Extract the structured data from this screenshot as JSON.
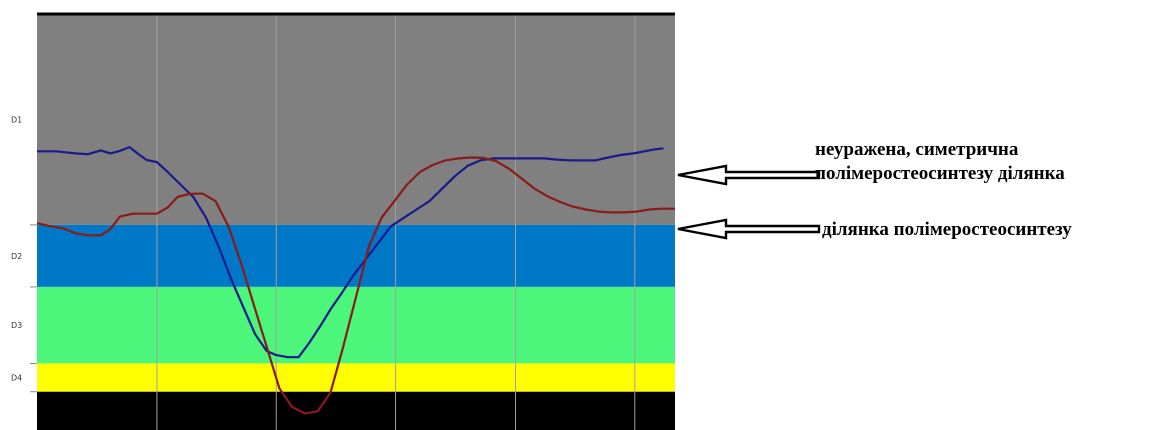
{
  "colors": {
    "band_D1": "#808080",
    "band_D2": "#0078c8",
    "band_D3": "#4cf67a",
    "band_D4": "#ffff00",
    "band_bottom": "#000000",
    "grid": "#a0a0a0",
    "series_intact": "#1a1a8c",
    "series_osteo": "#8b1a1a"
  },
  "annotations": {
    "intact_line1": "неуражена, симетрична",
    "intact_line2": "полімеростеосинтезу ділянка",
    "osteo": "ділянка полімеростеосинтезу"
  },
  "chart_data": {
    "type": "line",
    "bands": [
      {
        "label": "D1",
        "top": 1.0,
        "bottom": 0.493
      },
      {
        "label": "D2",
        "top": 0.493,
        "bottom": 0.344
      },
      {
        "label": "D3",
        "top": 0.344,
        "bottom": 0.16
      },
      {
        "label": "D4",
        "top": 0.16,
        "bottom": 0.092
      },
      {
        "label": "",
        "top": 0.092,
        "bottom": 0.0
      }
    ],
    "xlim": [
      0,
      100
    ],
    "ylim": [
      0,
      1
    ],
    "x_gridlines": [
      18.8,
      37.5,
      56.2,
      75.0,
      93.7
    ],
    "grid": true,
    "series": [
      {
        "key": "intact",
        "x": [
          0,
          3,
          6,
          8,
          10,
          11.5,
          13,
          14.5,
          16,
          17.2,
          18.8,
          20.5,
          22.5,
          24.5,
          26.5,
          28.5,
          30.5,
          32.5,
          34.2,
          36,
          37.5,
          39.3,
          41,
          42.7,
          44.4,
          46,
          47.8,
          49.5,
          51.5,
          53.5,
          55.5,
          57.5,
          59.5,
          61.5,
          63.5,
          65.5,
          67.5,
          69.5,
          71.5,
          73.5,
          75.5,
          77.5,
          79.5,
          81.5,
          83.5,
          85.5,
          87.5,
          89.5,
          91.5,
          93.5,
          95.5,
          97,
          98.2
        ],
        "y": [
          0.67,
          0.67,
          0.665,
          0.663,
          0.672,
          0.665,
          0.671,
          0.68,
          0.662,
          0.649,
          0.644,
          0.62,
          0.59,
          0.56,
          0.51,
          0.44,
          0.36,
          0.29,
          0.23,
          0.19,
          0.18,
          0.175,
          0.175,
          0.21,
          0.25,
          0.29,
          0.33,
          0.37,
          0.41,
          0.45,
          0.49,
          0.51,
          0.53,
          0.55,
          0.58,
          0.61,
          0.635,
          0.648,
          0.653,
          0.653,
          0.653,
          0.653,
          0.653,
          0.65,
          0.648,
          0.648,
          0.648,
          0.655,
          0.661,
          0.665,
          0.671,
          0.675,
          0.677
        ]
      },
      {
        "key": "osteo",
        "x": [
          0,
          2,
          4,
          6,
          8,
          10,
          11.5,
          13,
          15,
          17,
          18.8,
          20.5,
          22,
          24,
          26,
          28,
          30,
          32,
          34,
          36,
          38,
          40,
          42,
          44,
          46,
          48,
          50,
          52,
          54,
          56,
          58,
          60,
          62,
          64,
          66,
          68,
          70,
          72,
          74,
          76,
          78,
          80,
          82,
          84,
          86,
          88,
          90,
          92,
          94,
          96,
          98,
          100
        ],
        "y": [
          0.497,
          0.49,
          0.485,
          0.473,
          0.468,
          0.468,
          0.483,
          0.513,
          0.52,
          0.52,
          0.52,
          0.535,
          0.56,
          0.568,
          0.568,
          0.55,
          0.49,
          0.4,
          0.3,
          0.2,
          0.1,
          0.055,
          0.04,
          0.045,
          0.09,
          0.2,
          0.32,
          0.44,
          0.51,
          0.55,
          0.59,
          0.62,
          0.637,
          0.648,
          0.653,
          0.655,
          0.654,
          0.646,
          0.628,
          0.604,
          0.58,
          0.562,
          0.548,
          0.537,
          0.53,
          0.525,
          0.523,
          0.523,
          0.525,
          0.53,
          0.532,
          0.532
        ]
      }
    ]
  }
}
